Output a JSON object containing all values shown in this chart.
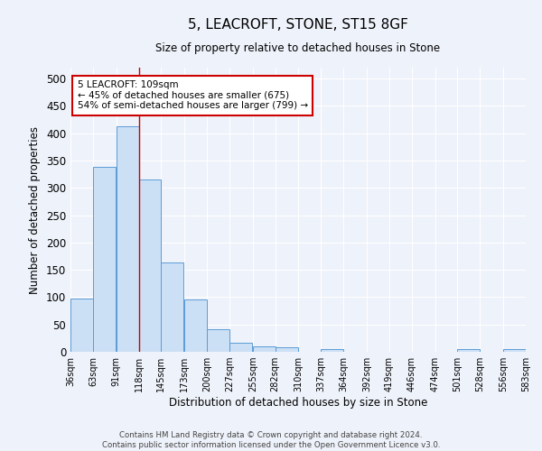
{
  "title": "5, LEACROFT, STONE, ST15 8GF",
  "subtitle": "Size of property relative to detached houses in Stone",
  "xlabel": "Distribution of detached houses by size in Stone",
  "ylabel": "Number of detached properties",
  "footer_line1": "Contains HM Land Registry data © Crown copyright and database right 2024.",
  "footer_line2": "Contains public sector information licensed under the Open Government Licence v3.0.",
  "annotation_line1": "5 LEACROFT: 109sqm",
  "annotation_line2": "← 45% of detached houses are smaller (675)",
  "annotation_line3": "54% of semi-detached houses are larger (799) →",
  "bar_color": "#cce0f5",
  "bar_edge_color": "#5b9bd5",
  "bins": [
    36,
    63,
    91,
    118,
    145,
    173,
    200,
    227,
    255,
    282,
    310,
    337,
    364,
    392,
    419,
    446,
    474,
    501,
    528,
    556,
    583
  ],
  "bin_labels": [
    "36sqm",
    "63sqm",
    "91sqm",
    "118sqm",
    "145sqm",
    "173sqm",
    "200sqm",
    "227sqm",
    "255sqm",
    "282sqm",
    "310sqm",
    "337sqm",
    "364sqm",
    "392sqm",
    "419sqm",
    "446sqm",
    "474sqm",
    "501sqm",
    "528sqm",
    "556sqm",
    "583sqm"
  ],
  "counts": [
    97,
    338,
    412,
    315,
    163,
    95,
    42,
    16,
    10,
    8,
    0,
    5,
    0,
    0,
    0,
    0,
    0,
    5,
    0,
    5,
    0
  ],
  "ylim": [
    0,
    520
  ],
  "yticks": [
    0,
    50,
    100,
    150,
    200,
    250,
    300,
    350,
    400,
    450,
    500
  ],
  "background_color": "#eef2fa",
  "grid_color": "#ffffff",
  "annotation_box_color": "#ffffff",
  "annotation_box_edge_color": "#cc0000",
  "vline_color": "#cc0000"
}
